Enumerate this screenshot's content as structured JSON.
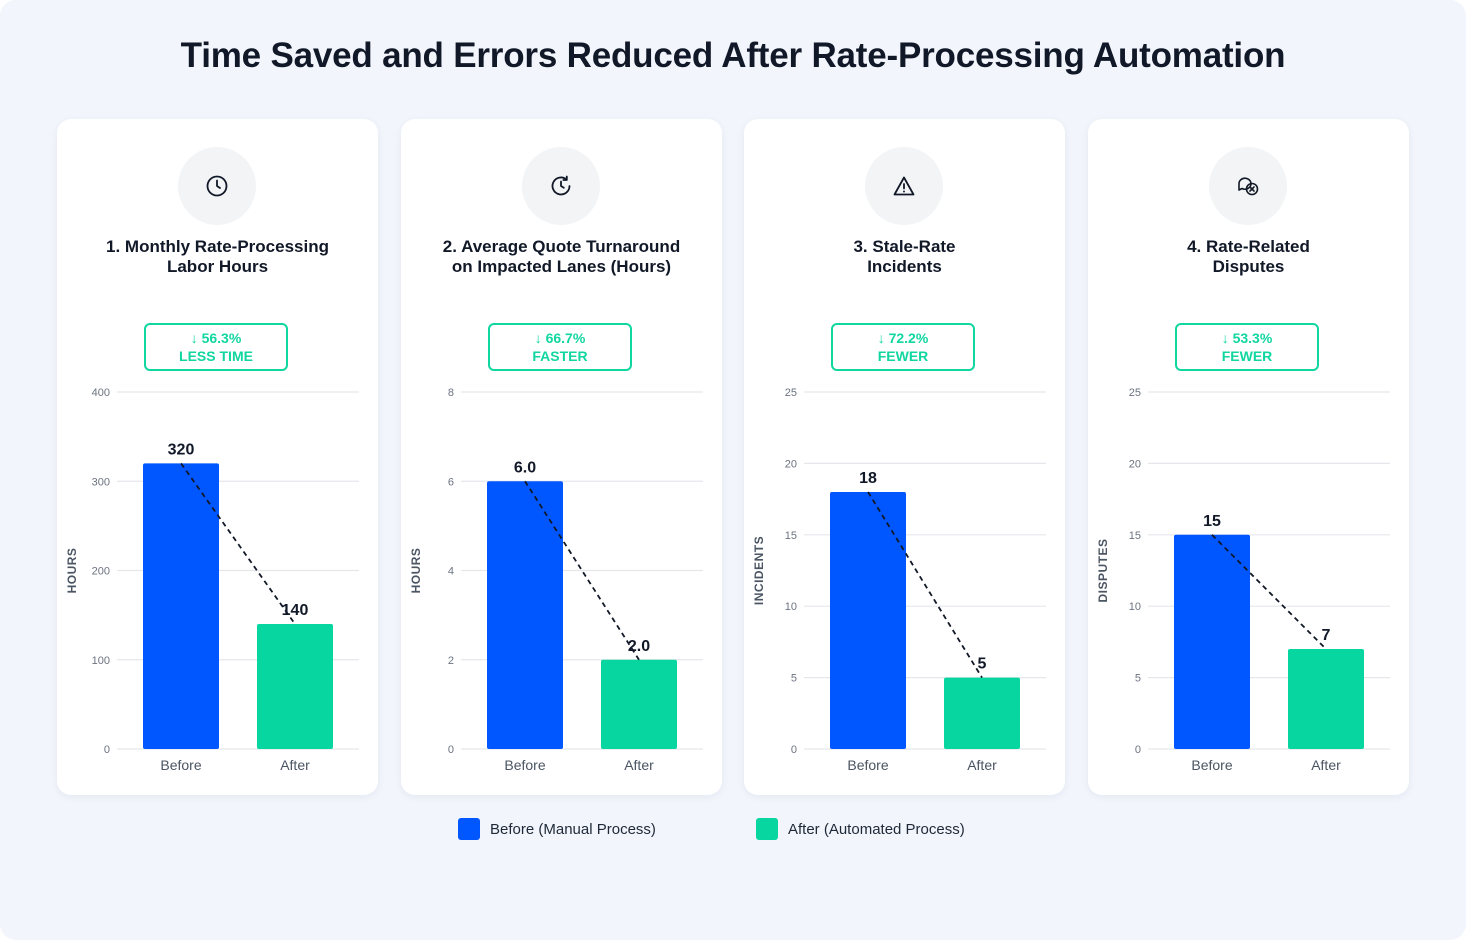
{
  "title": "Time Saved and Errors Reduced After Rate-Processing Automation",
  "colors": {
    "before": "#0057ff",
    "after": "#07d6a0",
    "badge": "#10d6a0"
  },
  "legend": {
    "before": "Before (Manual Process)",
    "after": "After (Automated Process)"
  },
  "cards": [
    {
      "icon": "clock-icon",
      "title_lines": [
        "1. Monthly Rate-Processing",
        "Labor Hours"
      ],
      "badge_line1": "↓ 56.3%",
      "badge_line2": "LESS TIME"
    },
    {
      "icon": "history-clock-icon",
      "title_lines": [
        "2. Average Quote Turnaround",
        "on Impacted Lanes (Hours)"
      ],
      "badge_line1": "↓ 66.7%",
      "badge_line2": "FASTER"
    },
    {
      "icon": "warning-triangle-icon",
      "title_lines": [
        "3. Stale-Rate",
        "Incidents"
      ],
      "badge_line1": "↓ 72.2%",
      "badge_line2": "FEWER"
    },
    {
      "icon": "chat-bubbles-icon",
      "title_lines": [
        "4. Rate-Related",
        "Disputes"
      ],
      "badge_line1": "↓ 53.3%",
      "badge_line2": "FEWER"
    }
  ],
  "chart_data": [
    {
      "type": "bar",
      "title": "1. Monthly Rate-Processing Labor Hours",
      "categories": [
        "Before",
        "After"
      ],
      "values": [
        320,
        140
      ],
      "value_labels": [
        "320",
        "140"
      ],
      "ylabel": "HOURS",
      "ylim": [
        0,
        400
      ],
      "yticks": [
        0,
        100,
        200,
        300,
        400
      ],
      "grid": true,
      "legend": "bottom"
    },
    {
      "type": "bar",
      "title": "2. Average Quote Turnaround on Impacted Lanes (Hours)",
      "categories": [
        "Before",
        "After"
      ],
      "values": [
        6.0,
        2.0
      ],
      "value_labels": [
        "6.0",
        "2.0"
      ],
      "ylabel": "HOURS",
      "ylim": [
        0,
        8
      ],
      "yticks": [
        0,
        2,
        4,
        6,
        8
      ],
      "grid": true,
      "legend": "bottom"
    },
    {
      "type": "bar",
      "title": "3. Stale-Rate Incidents",
      "categories": [
        "Before",
        "After"
      ],
      "values": [
        18,
        5
      ],
      "value_labels": [
        "18",
        "5"
      ],
      "ylabel": "INCIDENTS",
      "ylim": [
        0,
        25
      ],
      "yticks": [
        0,
        5,
        10,
        15,
        20,
        25
      ],
      "grid": true,
      "legend": "bottom"
    },
    {
      "type": "bar",
      "title": "4. Rate-Related Disputes",
      "categories": [
        "Before",
        "After"
      ],
      "values": [
        15,
        7
      ],
      "value_labels": [
        "15",
        "7"
      ],
      "ylabel": "DISPUTES",
      "ylim": [
        0,
        25
      ],
      "yticks": [
        0,
        5,
        10,
        15,
        20,
        25
      ],
      "grid": true,
      "legend": "bottom"
    }
  ]
}
